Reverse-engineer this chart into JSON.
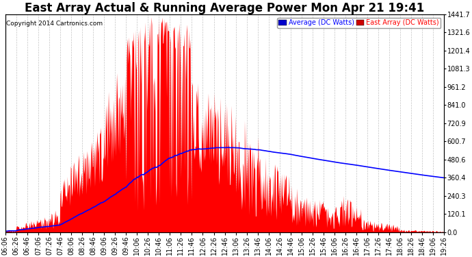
{
  "title": "East Array Actual & Running Average Power Mon Apr 21 19:41",
  "copyright": "Copyright 2014 Cartronics.com",
  "ylabel_right_values": [
    1441.7,
    1321.6,
    1201.4,
    1081.3,
    961.2,
    841.0,
    720.9,
    600.7,
    480.6,
    360.4,
    240.3,
    120.1,
    0.0
  ],
  "ymax": 1441.7,
  "ymin": 0.0,
  "legend_avg_label": "Average (DC Watts)",
  "legend_east_label": "East Array (DC Watts)",
  "legend_avg_color": "#0000ff",
  "legend_avg_bg": "#0000cc",
  "legend_east_color": "#ff0000",
  "legend_east_bg": "#cc0000",
  "fill_color": "#ff0000",
  "fill_alpha": 1.0,
  "line_color": "#0000ff",
  "background_color": "#ffffff",
  "grid_color": "#aaaaaa",
  "title_fontsize": 12,
  "tick_fontsize": 7,
  "time_labels": [
    "06:06",
    "06:26",
    "06:46",
    "07:06",
    "07:26",
    "07:46",
    "08:06",
    "08:26",
    "08:46",
    "09:06",
    "09:26",
    "09:46",
    "10:06",
    "10:26",
    "10:46",
    "11:06",
    "11:26",
    "11:46",
    "12:06",
    "12:26",
    "12:46",
    "13:06",
    "13:26",
    "13:46",
    "14:06",
    "14:26",
    "14:46",
    "15:06",
    "15:26",
    "15:46",
    "16:06",
    "16:26",
    "16:46",
    "17:06",
    "17:26",
    "17:46",
    "18:06",
    "18:26",
    "18:46",
    "19:06",
    "19:26"
  ]
}
